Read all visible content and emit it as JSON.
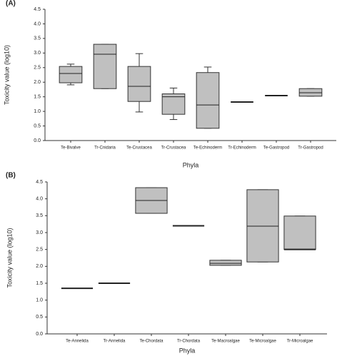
{
  "chart_data": [
    {
      "type": "box",
      "panel_label": "(A)",
      "ylabel": "Toxicity value (log10)",
      "xlabel": "Phyla",
      "color": "#c0c0c0",
      "categories": [
        "Te-Bivalve",
        "Tr-Cnidaria",
        "Te-Crustacea",
        "Tr-Crustacea",
        "Te-Echinoderm",
        "Tr-Echinoderm",
        "Te-Gastropod",
        "Tr-Gastropod"
      ],
      "min": [
        1.91,
        1.78,
        0.98,
        0.72,
        0.42,
        1.32,
        1.54,
        1.52
      ],
      "q1": [
        1.98,
        1.78,
        1.34,
        0.9,
        0.42,
        1.32,
        1.54,
        1.52
      ],
      "median": [
        2.3,
        2.96,
        1.86,
        1.5,
        1.22,
        1.32,
        1.54,
        1.64
      ],
      "q3": [
        2.54,
        3.3,
        2.54,
        1.6,
        2.33,
        1.32,
        1.54,
        1.78
      ],
      "max": [
        2.62,
        3.3,
        2.98,
        1.8,
        2.52,
        1.32,
        1.54,
        1.78
      ],
      "ylim": [
        0,
        4.5
      ],
      "yticks": [
        {
          "value": 0,
          "label": "0.0"
        },
        0.5,
        {
          "value": 1,
          "label": "1.0"
        },
        1.5,
        {
          "value": 2,
          "label": "2.0"
        },
        2.5,
        {
          "value": 3,
          "label": "3.0"
        },
        3.5,
        {
          "value": 4,
          "label": "4.0"
        },
        4.5
      ]
    },
    {
      "type": "box",
      "panel_label": "(B)",
      "ylabel": "Toxicity value (log10)",
      "xlabel": "Phyla",
      "color": "#c0c0c0",
      "categories": [
        "Te-Annelida",
        "Tr-Annelida",
        "Te-Chordata",
        "Tr-Chordata",
        "Te-Macroalgae",
        "Te-Microalgae",
        "Tr-Microalgae"
      ],
      "min": [
        1.35,
        1.5,
        3.57,
        3.2,
        2.03,
        2.13,
        2.5
      ],
      "q1": [
        1.35,
        1.5,
        3.57,
        3.2,
        2.03,
        2.13,
        2.5
      ],
      "median": [
        1.35,
        1.5,
        3.95,
        3.2,
        2.09,
        3.19,
        2.5
      ],
      "q3": [
        1.35,
        1.5,
        4.33,
        3.2,
        2.18,
        4.27,
        3.49
      ],
      "max": [
        1.35,
        1.5,
        4.33,
        3.2,
        2.18,
        4.27,
        3.49
      ],
      "ylim": [
        0,
        4.5
      ],
      "yticks": [
        {
          "value": 0,
          "label": "0.0"
        },
        0.5,
        {
          "value": 1,
          "label": "1.0"
        },
        1.5,
        {
          "value": 2,
          "label": "2.0"
        },
        2.5,
        {
          "value": 3,
          "label": "3.0"
        },
        3.5,
        {
          "value": 4,
          "label": "4.0"
        },
        4.5
      ]
    }
  ]
}
